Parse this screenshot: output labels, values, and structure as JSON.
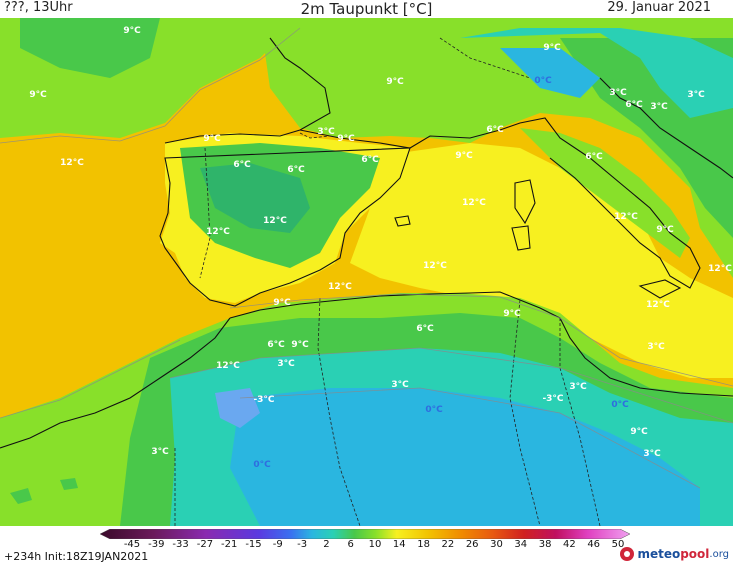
{
  "header": {
    "left": "???, 13Uhr",
    "title": "2m Taupunkt [°C]",
    "date": "29. Januar 2021"
  },
  "footer": {
    "run_info": "+234h  Init:18Z19JAN2021",
    "logo_part1": "meteo",
    "logo_part2": "pool",
    "logo_part3": ".org"
  },
  "legend": {
    "ticks": [
      "-45",
      "-39",
      "-33",
      "-27",
      "-21",
      "-15",
      "-9",
      "-3",
      "2",
      "6",
      "10",
      "14",
      "18",
      "22",
      "26",
      "30",
      "34",
      "38",
      "42",
      "46",
      "50"
    ]
  },
  "colors": {
    "ocean_yellow": "#f2c200",
    "land_yellow": "#f7f020",
    "lime": "#88e02a",
    "green": "#49c84a",
    "dark_green": "#2fb46a",
    "cyan": "#2ad0b4",
    "sky": "#2ab6e0",
    "light_blue": "#6aa8f0"
  },
  "map_labels": [
    {
      "text": "9°C",
      "tone": "warm"
    },
    {
      "text": "9°C",
      "tone": "warm"
    },
    {
      "text": "9°C",
      "tone": "warm"
    },
    {
      "text": "12°C",
      "tone": "warm"
    },
    {
      "text": "9°C",
      "tone": "warm"
    },
    {
      "text": "6°C",
      "tone": "warm"
    },
    {
      "text": "6°C",
      "tone": "warm"
    },
    {
      "text": "3°C",
      "tone": "warm"
    },
    {
      "text": "9°C",
      "tone": "warm"
    },
    {
      "text": "6°C",
      "tone": "warm"
    },
    {
      "text": "9°C",
      "tone": "warm"
    },
    {
      "text": "9°C",
      "tone": "warm"
    },
    {
      "text": "12°C",
      "tone": "warm"
    },
    {
      "text": "12°C",
      "tone": "warm"
    },
    {
      "text": "12°C",
      "tone": "warm"
    },
    {
      "text": "12°C",
      "tone": "warm"
    },
    {
      "text": "9°C",
      "tone": "warm"
    },
    {
      "text": "12°C",
      "tone": "warm"
    },
    {
      "text": "9°C",
      "tone": "warm"
    },
    {
      "text": "6°C",
      "tone": "warm"
    },
    {
      "text": "6°C",
      "tone": "warm"
    },
    {
      "text": "9°C",
      "tone": "warm"
    },
    {
      "text": "12°C",
      "tone": "warm"
    },
    {
      "text": "3°C",
      "tone": "warm"
    },
    {
      "text": "3°C",
      "tone": "warm"
    },
    {
      "text": "-3°C",
      "tone": "warm"
    },
    {
      "text": "3°C",
      "tone": "warm"
    },
    {
      "text": "0°C",
      "tone": "cold"
    },
    {
      "text": "0°C",
      "tone": "cold"
    },
    {
      "text": "-3°C",
      "tone": "warm"
    },
    {
      "text": "3°C",
      "tone": "warm"
    },
    {
      "text": "6°C",
      "tone": "warm"
    },
    {
      "text": "0°C",
      "tone": "cold"
    },
    {
      "text": "9°C",
      "tone": "warm"
    },
    {
      "text": "3°C",
      "tone": "warm"
    },
    {
      "text": "12°C",
      "tone": "warm"
    },
    {
      "text": "12°C",
      "tone": "warm"
    },
    {
      "text": "12°C",
      "tone": "warm"
    },
    {
      "text": "9°C",
      "tone": "warm"
    },
    {
      "text": "6°C",
      "tone": "warm"
    },
    {
      "text": "3°C",
      "tone": "warm"
    },
    {
      "text": "6°C",
      "tone": "warm"
    },
    {
      "text": "3°C",
      "tone": "warm"
    },
    {
      "text": "0°C",
      "tone": "cold"
    },
    {
      "text": "3°C",
      "tone": "warm"
    },
    {
      "text": "3°C",
      "tone": "warm"
    }
  ]
}
